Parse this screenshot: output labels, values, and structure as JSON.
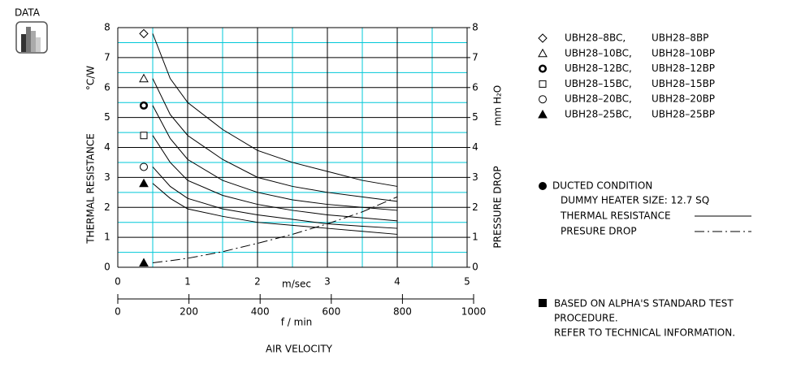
{
  "header": {
    "badge": "DATA"
  },
  "chart_data": {
    "type": "line",
    "x_unit_label": "m/sec",
    "x2_unit_label": "f / min",
    "x_label": "AIR VELOCITY",
    "y_label": "THERMAL RESISTANCE",
    "y_unit_label": "°C/W",
    "y2_label": "PRESSURE DROP",
    "y2_unit_label": "mm H₂O",
    "x": [
      0.5,
      0.75,
      1,
      1.5,
      2,
      2.5,
      3,
      3.5,
      4
    ],
    "xlim": [
      0,
      5
    ],
    "xticks": [
      0,
      1,
      2,
      3,
      4,
      5
    ],
    "x2lim": [
      0,
      1000
    ],
    "x2ticks": [
      0,
      200,
      400,
      600,
      800,
      1000
    ],
    "ylim": [
      0,
      8
    ],
    "yticks": [
      0,
      1,
      2,
      3,
      4,
      5,
      6,
      7,
      8
    ],
    "y2lim": [
      0,
      8
    ],
    "y2ticks": [
      0,
      1,
      2,
      3,
      4,
      5,
      6,
      7,
      8
    ],
    "grid": true,
    "grid_color": "#000000",
    "minor_grid_color": "#00c8d8",
    "series": [
      {
        "name": "UBH28–8BC,",
        "alt_name": "UBH28–8BP",
        "marker": "diamond",
        "color": "#000000",
        "style": "solid",
        "values": [
          7.8,
          6.3,
          5.5,
          4.6,
          3.9,
          3.5,
          3.2,
          2.9,
          2.7
        ]
      },
      {
        "name": "UBH28–10BC,",
        "alt_name": "UBH28–10BP",
        "marker": "triangle",
        "color": "#000000",
        "style": "solid",
        "values": [
          6.3,
          5.1,
          4.4,
          3.6,
          3.0,
          2.7,
          2.5,
          2.35,
          2.2
        ]
      },
      {
        "name": "UBH28–12BC,",
        "alt_name": "UBH28–12BP",
        "marker": "ring",
        "color": "#000000",
        "style": "solid",
        "values": [
          5.4,
          4.3,
          3.6,
          2.9,
          2.5,
          2.25,
          2.1,
          2.0,
          1.9
        ]
      },
      {
        "name": "UBH28–15BC,",
        "alt_name": "UBH28–15BP",
        "marker": "square",
        "color": "#000000",
        "style": "solid",
        "values": [
          4.4,
          3.5,
          2.9,
          2.4,
          2.1,
          1.9,
          1.75,
          1.65,
          1.55
        ]
      },
      {
        "name": "UBH28–20BC,",
        "alt_name": "UBH28–20BP",
        "marker": "circle",
        "color": "#000000",
        "style": "solid",
        "values": [
          3.35,
          2.7,
          2.3,
          1.95,
          1.75,
          1.6,
          1.45,
          1.37,
          1.3
        ]
      },
      {
        "name": "UBH28–25BC,",
        "alt_name": "UBH28–25BP",
        "marker": "filled-triangle",
        "color": "#000000",
        "style": "solid",
        "values": [
          2.8,
          2.3,
          1.95,
          1.7,
          1.5,
          1.4,
          1.3,
          1.2,
          1.1
        ]
      },
      {
        "name": "PRESURE DROP",
        "marker": "filled-triangle",
        "color": "#000000",
        "style": "dashdot",
        "axis": "y2",
        "values": [
          0.15,
          0.22,
          0.3,
          0.52,
          0.8,
          1.1,
          1.45,
          1.85,
          2.35
        ]
      }
    ]
  },
  "notes": {
    "condition": "DUCTED CONDITION",
    "heater": "DUMMY HEATER SIZE: 12.7 SQ",
    "thermal": "THERMAL RESISTANCE",
    "footnote": [
      "BASED ON ALPHA'S STANDARD TEST",
      "PROCEDURE.",
      "REFER TO TECHNICAL INFORMATION."
    ]
  }
}
